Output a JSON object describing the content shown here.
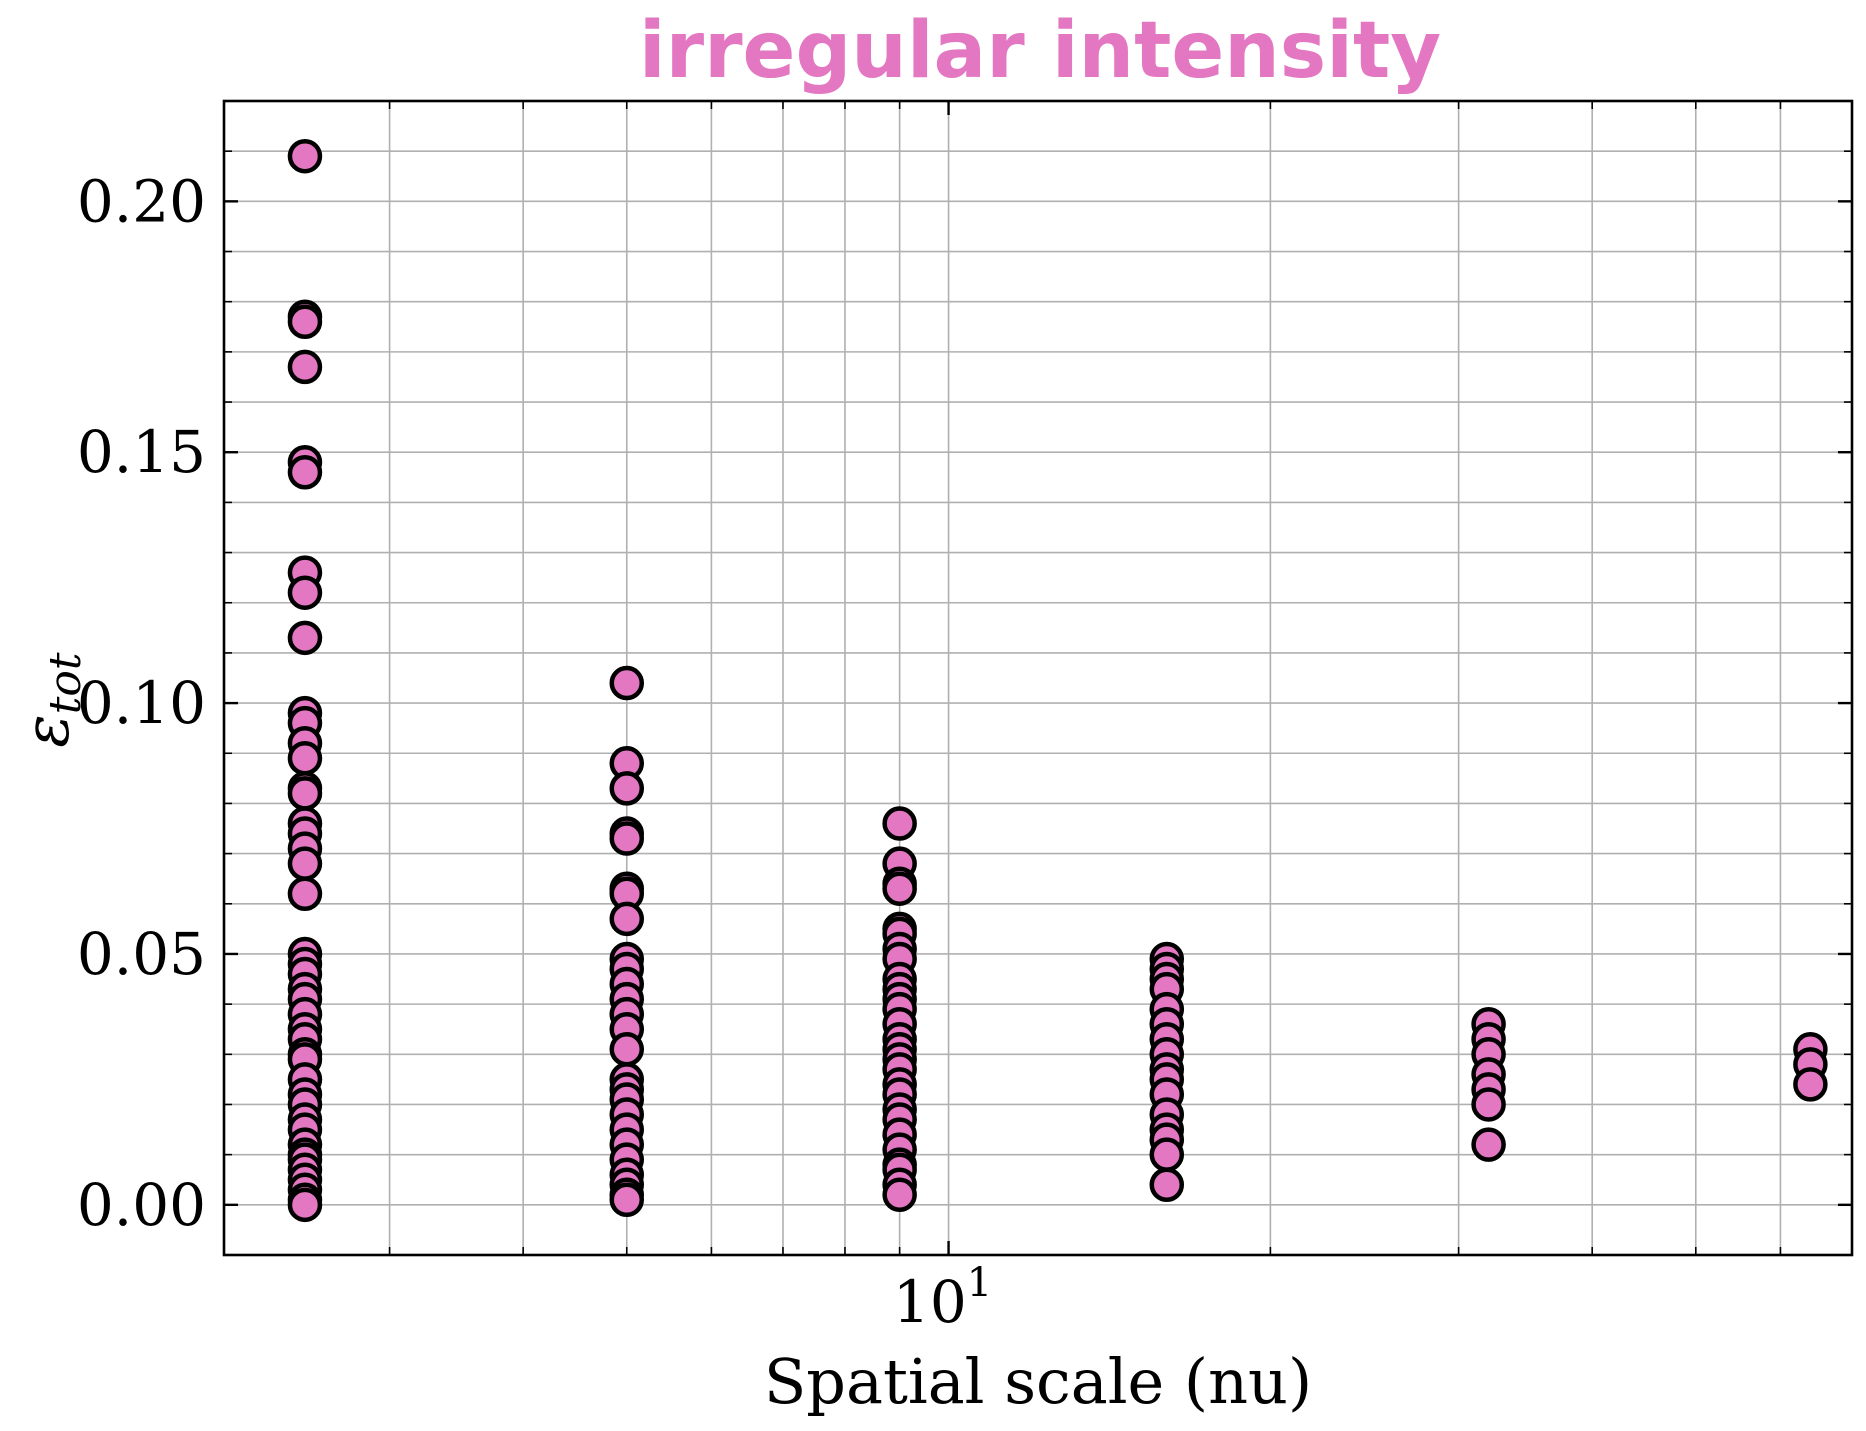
{
  "chart_data": {
    "type": "scatter",
    "title": "irregular intensity",
    "xlabel": "Spatial scale (nu)",
    "ylabel": "ε_tot",
    "ylabel_main": "ε",
    "ylabel_sub": "tot",
    "x_scale": "log",
    "xlim": [
      2.1,
      70
    ],
    "ylim": [
      -0.01,
      0.22
    ],
    "x_tick_labels": [
      {
        "value": 10,
        "base": "10",
        "exp": "1"
      }
    ],
    "y_ticks": [
      0.0,
      0.05,
      0.1,
      0.15,
      0.2
    ],
    "y_tick_labels": [
      "0.00",
      "0.05",
      "0.10",
      "0.15",
      "0.20"
    ],
    "grid": true,
    "colors": {
      "title": "#e377c2",
      "marker_fill": "#e377c2",
      "marker_edge": "#000000"
    },
    "series": [
      {
        "points": [
          {
            "x": 2.5,
            "y": [
              0.209,
              0.177,
              0.176,
              0.167,
              0.148,
              0.146,
              0.126,
              0.122,
              0.113,
              0.098,
              0.096,
              0.092,
              0.089,
              0.083,
              0.082,
              0.076,
              0.074,
              0.071,
              0.068,
              0.062,
              0.05,
              0.048,
              0.046,
              0.043,
              0.041,
              0.038,
              0.035,
              0.033,
              0.03,
              0.029,
              0.025,
              0.022,
              0.02,
              0.017,
              0.015,
              0.012,
              0.01,
              0.009,
              0.007,
              0.005,
              0.003,
              0.001,
              0.0
            ]
          },
          {
            "x": 5.0,
            "y": [
              0.104,
              0.088,
              0.083,
              0.074,
              0.073,
              0.063,
              0.062,
              0.057,
              0.049,
              0.047,
              0.044,
              0.041,
              0.038,
              0.035,
              0.031,
              0.025,
              0.023,
              0.021,
              0.018,
              0.015,
              0.012,
              0.009,
              0.006,
              0.004,
              0.002,
              0.001
            ]
          },
          {
            "x": 9.0,
            "y": [
              0.076,
              0.068,
              0.064,
              0.063,
              0.055,
              0.054,
              0.051,
              0.049,
              0.045,
              0.043,
              0.041,
              0.039,
              0.036,
              0.033,
              0.031,
              0.029,
              0.027,
              0.024,
              0.022,
              0.019,
              0.017,
              0.014,
              0.011,
              0.008,
              0.007,
              0.004,
              0.002
            ]
          },
          {
            "x": 16.0,
            "y": [
              0.049,
              0.047,
              0.045,
              0.043,
              0.039,
              0.036,
              0.033,
              0.03,
              0.027,
              0.025,
              0.022,
              0.018,
              0.015,
              0.013,
              0.01,
              0.004
            ]
          },
          {
            "x": 32.0,
            "y": [
              0.036,
              0.033,
              0.03,
              0.026,
              0.023,
              0.02,
              0.012
            ]
          },
          {
            "x": 64.0,
            "y": [
              0.031,
              0.028,
              0.024
            ]
          }
        ]
      }
    ]
  }
}
